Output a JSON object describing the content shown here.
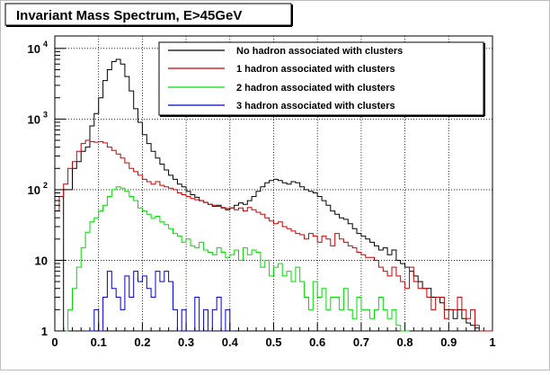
{
  "chart_data": {
    "type": "line",
    "title": "Invariant Mass Spectrum, E>45GeV",
    "xlabel": "",
    "ylabel": "",
    "xlim": [
      0,
      1
    ],
    "ylim": [
      1,
      15000
    ],
    "yscale": "log",
    "grid": true,
    "legend_position": "top-right",
    "x_ticks": [
      "0",
      "0.1",
      "0.2",
      "0.3",
      "0.4",
      "0.5",
      "0.6",
      "0.7",
      "0.8",
      "0.9",
      "1"
    ],
    "y_ticks": [
      {
        "value": 1,
        "base": "1",
        "exp": ""
      },
      {
        "value": 10,
        "base": "10",
        "exp": ""
      },
      {
        "value": 100,
        "base": "10",
        "exp": "2"
      },
      {
        "value": 1000,
        "base": "10",
        "exp": "3"
      },
      {
        "value": 10000,
        "base": "10",
        "exp": "4"
      }
    ],
    "series": [
      {
        "name": "No hadron associated with clusters",
        "color": "#000000",
        "x": [
          0.0,
          0.01,
          0.02,
          0.03,
          0.04,
          0.05,
          0.06,
          0.07,
          0.08,
          0.09,
          0.1,
          0.11,
          0.12,
          0.13,
          0.14,
          0.15,
          0.16,
          0.17,
          0.18,
          0.19,
          0.2,
          0.21,
          0.22,
          0.23,
          0.24,
          0.25,
          0.26,
          0.27,
          0.28,
          0.29,
          0.3,
          0.31,
          0.32,
          0.33,
          0.34,
          0.35,
          0.36,
          0.37,
          0.38,
          0.39,
          0.4,
          0.41,
          0.42,
          0.43,
          0.44,
          0.45,
          0.46,
          0.47,
          0.48,
          0.49,
          0.5,
          0.51,
          0.52,
          0.53,
          0.54,
          0.55,
          0.56,
          0.57,
          0.58,
          0.59,
          0.6,
          0.61,
          0.62,
          0.63,
          0.64,
          0.65,
          0.66,
          0.67,
          0.68,
          0.69,
          0.7,
          0.71,
          0.72,
          0.73,
          0.74,
          0.75,
          0.76,
          0.77,
          0.78,
          0.79,
          0.8,
          0.81,
          0.82,
          0.83,
          0.84,
          0.85,
          0.86,
          0.87,
          0.88,
          0.89,
          0.9,
          0.91,
          0.92,
          0.93,
          0.94,
          0.95,
          0.96,
          0.97,
          0.98,
          0.99
        ],
        "values": [
          1,
          1,
          100,
          100,
          200,
          250,
          350,
          400,
          800,
          1200,
          2000,
          3500,
          5000,
          6500,
          7000,
          6000,
          4000,
          2500,
          1400,
          900,
          600,
          450,
          350,
          280,
          230,
          190,
          160,
          140,
          120,
          110,
          95,
          85,
          78,
          70,
          66,
          62,
          58,
          60,
          55,
          52,
          55,
          60,
          65,
          62,
          70,
          80,
          95,
          110,
          125,
          135,
          140,
          135,
          125,
          120,
          130,
          125,
          110,
          100,
          95,
          90,
          80,
          70,
          60,
          50,
          45,
          40,
          38,
          33,
          28,
          24,
          22,
          20,
          18,
          16,
          14,
          15,
          12,
          14,
          10,
          9,
          8,
          7,
          6,
          5,
          4,
          4,
          3,
          3,
          2.5,
          2,
          2,
          1.5,
          2,
          1.5,
          1.3,
          1.2,
          1.1,
          1,
          1,
          1
        ]
      },
      {
        "name": "1 hadron associated with clusters",
        "color": "#cc0000",
        "x": [
          0.0,
          0.01,
          0.02,
          0.03,
          0.04,
          0.05,
          0.06,
          0.07,
          0.08,
          0.09,
          0.1,
          0.11,
          0.12,
          0.13,
          0.14,
          0.15,
          0.16,
          0.17,
          0.18,
          0.19,
          0.2,
          0.21,
          0.22,
          0.23,
          0.24,
          0.25,
          0.26,
          0.27,
          0.28,
          0.29,
          0.3,
          0.31,
          0.32,
          0.33,
          0.34,
          0.35,
          0.36,
          0.37,
          0.38,
          0.39,
          0.4,
          0.41,
          0.42,
          0.43,
          0.44,
          0.45,
          0.46,
          0.47,
          0.48,
          0.49,
          0.5,
          0.51,
          0.52,
          0.53,
          0.54,
          0.55,
          0.56,
          0.57,
          0.58,
          0.59,
          0.6,
          0.61,
          0.62,
          0.63,
          0.64,
          0.65,
          0.66,
          0.67,
          0.68,
          0.69,
          0.7,
          0.71,
          0.72,
          0.73,
          0.74,
          0.75,
          0.76,
          0.77,
          0.78,
          0.79,
          0.8,
          0.81,
          0.82,
          0.83,
          0.84,
          0.85,
          0.86,
          0.87,
          0.88,
          0.89,
          0.9,
          0.91,
          0.92,
          0.93,
          0.94,
          0.95,
          0.96,
          0.97,
          0.98,
          0.99
        ],
        "values": [
          50,
          80,
          120,
          200,
          250,
          350,
          450,
          500,
          480,
          470,
          480,
          460,
          400,
          360,
          320,
          280,
          240,
          200,
          180,
          160,
          140,
          130,
          120,
          130,
          115,
          110,
          105,
          100,
          90,
          85,
          80,
          75,
          72,
          70,
          66,
          62,
          60,
          58,
          56,
          54,
          55,
          52,
          55,
          50,
          56,
          52,
          48,
          45,
          40,
          36,
          33,
          35,
          30,
          28,
          26,
          24,
          23,
          20,
          24,
          22,
          18,
          22,
          20,
          16,
          24,
          20,
          18,
          16,
          15,
          13,
          12,
          11,
          11,
          10,
          8,
          7,
          6,
          8,
          6,
          5,
          4,
          8,
          5,
          4,
          4,
          3,
          2,
          3,
          3,
          1.5,
          2,
          2,
          3,
          2,
          1.5,
          2,
          1.2,
          1,
          1,
          1
        ]
      },
      {
        "name": "2 hadron associated with clusters",
        "color": "#00dd00",
        "x": [
          0.0,
          0.01,
          0.02,
          0.03,
          0.04,
          0.05,
          0.06,
          0.07,
          0.08,
          0.09,
          0.1,
          0.11,
          0.12,
          0.13,
          0.14,
          0.15,
          0.16,
          0.17,
          0.18,
          0.19,
          0.2,
          0.21,
          0.22,
          0.23,
          0.24,
          0.25,
          0.26,
          0.27,
          0.28,
          0.29,
          0.3,
          0.31,
          0.32,
          0.33,
          0.34,
          0.35,
          0.36,
          0.37,
          0.38,
          0.39,
          0.4,
          0.41,
          0.42,
          0.43,
          0.44,
          0.45,
          0.46,
          0.47,
          0.48,
          0.49,
          0.5,
          0.51,
          0.52,
          0.53,
          0.54,
          0.55,
          0.56,
          0.57,
          0.58,
          0.59,
          0.6,
          0.61,
          0.62,
          0.63,
          0.64,
          0.65,
          0.66,
          0.67,
          0.68,
          0.69,
          0.7,
          0.71,
          0.72,
          0.73,
          0.74,
          0.75,
          0.76,
          0.77,
          0.78,
          0.79,
          0.8
        ],
        "values": [
          1,
          1,
          1,
          2,
          4,
          8,
          15,
          25,
          35,
          40,
          50,
          60,
          80,
          100,
          110,
          105,
          95,
          80,
          70,
          55,
          50,
          45,
          40,
          42,
          35,
          32,
          28,
          24,
          22,
          18,
          20,
          16,
          15,
          18,
          14,
          13,
          12,
          15,
          13,
          11,
          12,
          14,
          10,
          15,
          12,
          14,
          13,
          8,
          10,
          6,
          8,
          9,
          6,
          7,
          5,
          8,
          5,
          3,
          2,
          5,
          3,
          4,
          2,
          3,
          3,
          2,
          4,
          2,
          1.5,
          3,
          2,
          2,
          1.5,
          2,
          3,
          2,
          1.5,
          2,
          1.2,
          1,
          1
        ]
      },
      {
        "name": "3 hadron associated with clusters",
        "color": "#0000cc",
        "x": [
          0.07,
          0.08,
          0.09,
          0.1,
          0.11,
          0.12,
          0.13,
          0.14,
          0.15,
          0.16,
          0.17,
          0.18,
          0.19,
          0.2,
          0.21,
          0.22,
          0.23,
          0.24,
          0.25,
          0.26,
          0.27,
          0.28,
          0.29,
          0.3,
          0.31,
          0.32,
          0.33,
          0.34,
          0.35,
          0.36,
          0.37,
          0.38,
          0.39,
          0.4
        ],
        "values": [
          1,
          1,
          2,
          1,
          3,
          7,
          4,
          3,
          2,
          6,
          3,
          7,
          5,
          6,
          4,
          3,
          7,
          5,
          7,
          5,
          2,
          1,
          2,
          1,
          1,
          3,
          1,
          2,
          1,
          2,
          3,
          1,
          2,
          1
        ]
      }
    ]
  }
}
